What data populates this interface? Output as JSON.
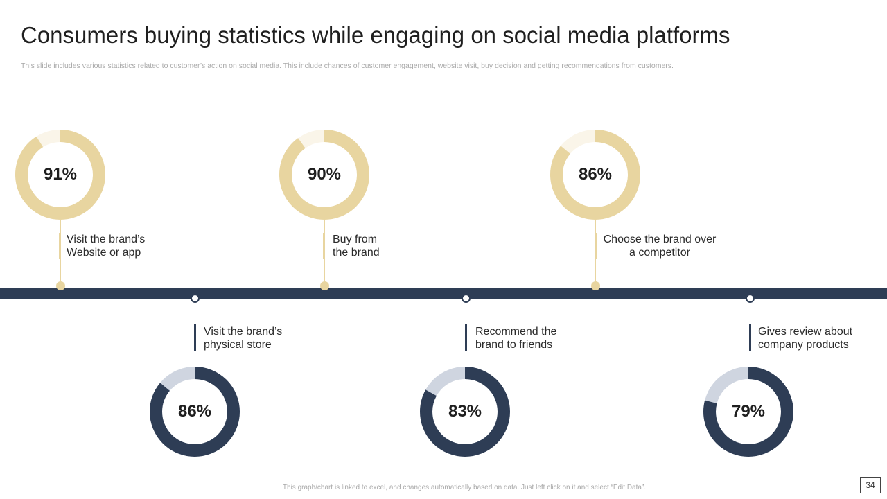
{
  "slide": {
    "title": "Consumers buying statistics while engaging on social media platforms",
    "subtitle": "This slide includes various statistics related to customer’s action on social media. This include chances of customer engagement, website visit, buy decision and getting recommendations from customers.",
    "footer": "This graph/chart is linked to excel, and changes automatically based on data. Just left click on it and select “Edit Data”.",
    "page_number": "34"
  },
  "colors": {
    "gold": "#e8d5a0",
    "gold_remainder": "#faf5e9",
    "navy": "#2e3d55",
    "navy_remainder": "#cfd5e0"
  },
  "chart_data": {
    "type": "donut",
    "title": "Consumers buying statistics while engaging on social media platforms",
    "items": [
      {
        "label": "Visit the brand’s Website or app",
        "value": 91,
        "display": "91%",
        "line1": "Visit the brand’s",
        "line2": "Website or app",
        "position": "top",
        "color": "gold"
      },
      {
        "label": "Visit the brand’s physical store",
        "value": 86,
        "display": "86%",
        "line1": "Visit the brand’s",
        "line2": "physical store",
        "position": "bottom",
        "color": "navy"
      },
      {
        "label": "Buy from the brand",
        "value": 90,
        "display": "90%",
        "line1": "Buy from",
        "line2": "the brand",
        "position": "top",
        "color": "gold"
      },
      {
        "label": "Recommend the brand to friends",
        "value": 83,
        "display": "83%",
        "line1": "Recommend the",
        "line2": "brand to friends",
        "position": "bottom",
        "color": "navy"
      },
      {
        "label": "Choose the brand over a competitor",
        "value": 86,
        "display": "86%",
        "line1": "Choose the brand over",
        "line2": "a competitor",
        "position": "top",
        "color": "gold"
      },
      {
        "label": "Gives review about company products",
        "value": 79,
        "display": "79%",
        "line1": "Gives review about",
        "line2": "company products",
        "position": "bottom",
        "color": "navy"
      }
    ]
  }
}
